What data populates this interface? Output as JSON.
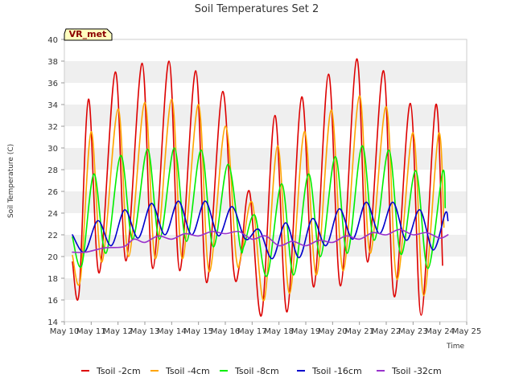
{
  "chart_data": {
    "type": "line",
    "title": "Soil Temperatures Set 2",
    "xlabel": "Time",
    "ylabel": "Soil Temperature (C)",
    "ylim": [
      14,
      40
    ],
    "xlim": [
      10,
      25
    ],
    "y_ticks": [
      14,
      16,
      18,
      20,
      22,
      24,
      26,
      28,
      30,
      32,
      34,
      36,
      38,
      40
    ],
    "x_ticks": [
      {
        "value": 10,
        "label": "May 10"
      },
      {
        "value": 11,
        "label": "May 11"
      },
      {
        "value": 12,
        "label": "May 12"
      },
      {
        "value": 13,
        "label": "May 13"
      },
      {
        "value": 14,
        "label": "May 14"
      },
      {
        "value": 15,
        "label": "May 15"
      },
      {
        "value": 16,
        "label": "May 16"
      },
      {
        "value": 17,
        "label": "May 17"
      },
      {
        "value": 18,
        "label": "May 18"
      },
      {
        "value": 19,
        "label": "May 19"
      },
      {
        "value": 20,
        "label": "May 20"
      },
      {
        "value": 21,
        "label": "May 21"
      },
      {
        "value": 22,
        "label": "May 22"
      },
      {
        "value": 23,
        "label": "May 23"
      },
      {
        "value": 24,
        "label": "May 24"
      },
      {
        "value": 25,
        "label": "May 25"
      }
    ],
    "grid": "horizontal bands",
    "legend_position": "bottom",
    "annotation": "VR_met",
    "series": [
      {
        "name": "Tsoil -2cm",
        "color": "#dd0000",
        "points": [
          [
            10.3,
            19.5
          ],
          [
            10.55,
            16.7
          ],
          [
            10.9,
            34.5
          ],
          [
            11.3,
            18.5
          ],
          [
            11.9,
            37.0
          ],
          [
            12.3,
            19.6
          ],
          [
            12.9,
            37.8
          ],
          [
            13.3,
            18.9
          ],
          [
            13.9,
            38.0
          ],
          [
            14.3,
            18.7
          ],
          [
            14.9,
            37.1
          ],
          [
            15.3,
            17.6
          ],
          [
            15.9,
            35.2
          ],
          [
            16.3,
            19.0
          ],
          [
            16.55,
            19.5
          ],
          [
            16.9,
            26.0
          ],
          [
            17.35,
            14.6
          ],
          [
            17.85,
            33.0
          ],
          [
            18.3,
            14.9
          ],
          [
            18.85,
            34.7
          ],
          [
            19.3,
            17.2
          ],
          [
            19.85,
            36.8
          ],
          [
            20.3,
            17.3
          ],
          [
            20.9,
            38.2
          ],
          [
            21.3,
            19.5
          ],
          [
            21.9,
            37.1
          ],
          [
            22.3,
            16.3
          ],
          [
            22.9,
            34.1
          ],
          [
            23.3,
            14.6
          ],
          [
            23.85,
            34.0
          ],
          [
            24.1,
            19.2
          ]
        ]
      },
      {
        "name": "Tsoil -4cm",
        "color": "#ffa500",
        "points": [
          [
            10.3,
            20.1
          ],
          [
            10.6,
            17.9
          ],
          [
            11.0,
            31.5
          ],
          [
            11.4,
            19.5
          ],
          [
            12.0,
            33.6
          ],
          [
            12.4,
            20.0
          ],
          [
            13.0,
            34.2
          ],
          [
            13.4,
            19.8
          ],
          [
            14.0,
            34.5
          ],
          [
            14.4,
            19.8
          ],
          [
            15.0,
            34.0
          ],
          [
            15.4,
            18.6
          ],
          [
            16.0,
            32.0
          ],
          [
            16.4,
            20.0
          ],
          [
            16.6,
            20.2
          ],
          [
            17.0,
            25.0
          ],
          [
            17.45,
            16.0
          ],
          [
            17.95,
            30.2
          ],
          [
            18.4,
            16.6
          ],
          [
            18.95,
            31.5
          ],
          [
            19.4,
            18.3
          ],
          [
            19.95,
            33.5
          ],
          [
            20.4,
            18.7
          ],
          [
            21.0,
            34.8
          ],
          [
            21.4,
            20.3
          ],
          [
            22.0,
            33.8
          ],
          [
            22.4,
            17.9
          ],
          [
            23.0,
            31.4
          ],
          [
            23.4,
            16.4
          ],
          [
            23.95,
            31.3
          ],
          [
            24.15,
            22.7
          ]
        ]
      },
      {
        "name": "Tsoil -8cm",
        "color": "#00ee00",
        "points": [
          [
            10.3,
            21.8
          ],
          [
            10.65,
            19.2
          ],
          [
            11.1,
            27.6
          ],
          [
            11.55,
            20.3
          ],
          [
            12.1,
            29.3
          ],
          [
            12.55,
            21.6
          ],
          [
            13.1,
            29.9
          ],
          [
            13.55,
            21.6
          ],
          [
            14.1,
            30.0
          ],
          [
            14.55,
            21.4
          ],
          [
            15.1,
            29.8
          ],
          [
            15.55,
            20.9
          ],
          [
            16.1,
            28.5
          ],
          [
            16.55,
            21.0
          ],
          [
            16.7,
            21.0
          ],
          [
            17.1,
            23.8
          ],
          [
            17.55,
            18.2
          ],
          [
            18.1,
            26.7
          ],
          [
            18.55,
            18.3
          ],
          [
            19.1,
            27.6
          ],
          [
            19.55,
            20.0
          ],
          [
            20.1,
            29.2
          ],
          [
            20.55,
            20.3
          ],
          [
            21.1,
            30.2
          ],
          [
            21.55,
            21.5
          ],
          [
            22.1,
            29.8
          ],
          [
            22.55,
            20.2
          ],
          [
            23.1,
            27.9
          ],
          [
            23.55,
            18.9
          ],
          [
            24.1,
            27.8
          ],
          [
            24.2,
            24.5
          ]
        ]
      },
      {
        "name": "Tsoil -16cm",
        "color": "#0000cc",
        "points": [
          [
            10.3,
            22.0
          ],
          [
            10.75,
            20.4
          ],
          [
            11.25,
            23.3
          ],
          [
            11.75,
            21.0
          ],
          [
            12.25,
            24.3
          ],
          [
            12.75,
            21.7
          ],
          [
            13.25,
            24.9
          ],
          [
            13.75,
            22.0
          ],
          [
            14.25,
            25.1
          ],
          [
            14.75,
            22.0
          ],
          [
            15.25,
            25.1
          ],
          [
            15.75,
            21.9
          ],
          [
            16.25,
            24.6
          ],
          [
            16.75,
            21.6
          ],
          [
            17.25,
            22.5
          ],
          [
            17.75,
            19.8
          ],
          [
            18.25,
            23.1
          ],
          [
            18.75,
            19.9
          ],
          [
            19.25,
            23.5
          ],
          [
            19.75,
            21.0
          ],
          [
            20.25,
            24.4
          ],
          [
            20.75,
            21.6
          ],
          [
            21.25,
            25.0
          ],
          [
            21.75,
            22.1
          ],
          [
            22.25,
            25.0
          ],
          [
            22.75,
            21.5
          ],
          [
            23.25,
            24.3
          ],
          [
            23.75,
            20.6
          ],
          [
            24.2,
            24.0
          ],
          [
            24.3,
            23.3
          ]
        ]
      },
      {
        "name": "Tsoil -32cm",
        "color": "#9933cc",
        "points": [
          [
            10.3,
            20.4
          ],
          [
            10.8,
            20.4
          ],
          [
            11.5,
            20.8
          ],
          [
            12.2,
            20.9
          ],
          [
            12.6,
            21.6
          ],
          [
            13.0,
            21.3
          ],
          [
            13.5,
            21.9
          ],
          [
            14.0,
            21.6
          ],
          [
            14.5,
            22.1
          ],
          [
            15.0,
            21.9
          ],
          [
            15.5,
            22.3
          ],
          [
            16.0,
            22.1
          ],
          [
            16.5,
            22.3
          ],
          [
            17.0,
            21.6
          ],
          [
            17.5,
            21.9
          ],
          [
            18.0,
            21.0
          ],
          [
            18.5,
            21.4
          ],
          [
            19.0,
            21.0
          ],
          [
            19.5,
            21.5
          ],
          [
            20.0,
            21.3
          ],
          [
            20.5,
            21.9
          ],
          [
            21.0,
            21.6
          ],
          [
            21.5,
            22.2
          ],
          [
            22.0,
            22.0
          ],
          [
            22.5,
            22.5
          ],
          [
            23.0,
            22.0
          ],
          [
            23.5,
            22.2
          ],
          [
            24.0,
            21.7
          ],
          [
            24.3,
            22.0
          ]
        ]
      }
    ]
  }
}
